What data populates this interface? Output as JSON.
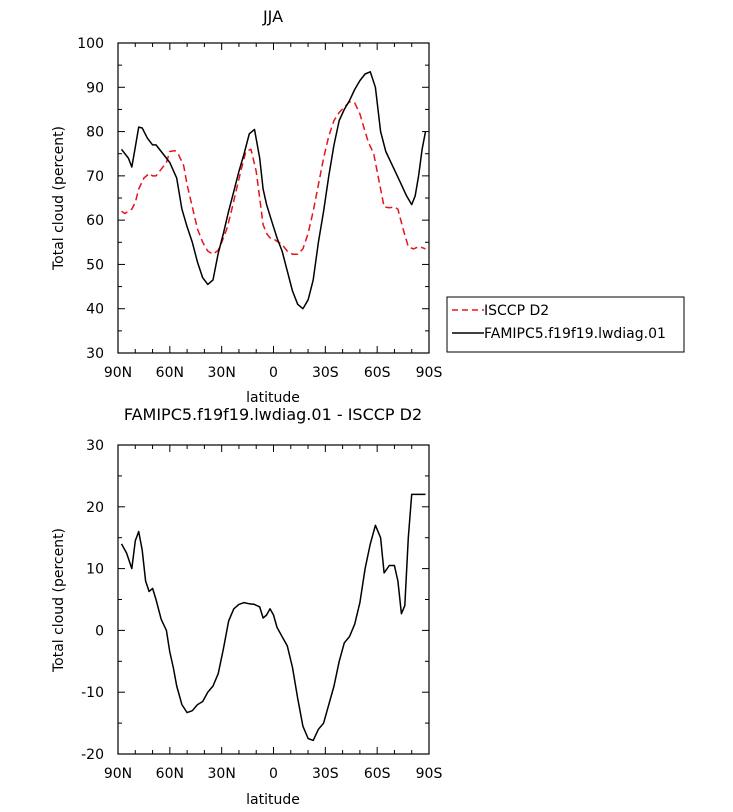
{
  "chart_data": [
    {
      "type": "line",
      "title": "JJA",
      "xlabel": "latitude",
      "ylabel": "Total cloud (percent)",
      "xlim": [
        90,
        -90
      ],
      "ylim": [
        30,
        100
      ],
      "x_ticks": [
        {
          "value": 90,
          "label": "90N"
        },
        {
          "value": 60,
          "label": "60N"
        },
        {
          "value": 30,
          "label": "30N"
        },
        {
          "value": 0,
          "label": "0"
        },
        {
          "value": -30,
          "label": "30S"
        },
        {
          "value": -60,
          "label": "60S"
        },
        {
          "value": -90,
          "label": "90S"
        }
      ],
      "y_ticks": [
        {
          "value": 30,
          "label": "30"
        },
        {
          "value": 40,
          "label": "40"
        },
        {
          "value": 50,
          "label": "50"
        },
        {
          "value": 60,
          "label": "60"
        },
        {
          "value": 70,
          "label": "70"
        },
        {
          "value": 80,
          "label": "80"
        },
        {
          "value": 90,
          "label": "90"
        },
        {
          "value": 100,
          "label": "100"
        }
      ],
      "legend_position": "right",
      "series": [
        {
          "name": "ISCCP D2",
          "color": "#e8131b",
          "dashed": true,
          "x": [
            88,
            86,
            82,
            80,
            78,
            75,
            72,
            70,
            68,
            65,
            62,
            60,
            57,
            55,
            52,
            50,
            47,
            44,
            41,
            38,
            35,
            32,
            30,
            27,
            25,
            22,
            19,
            16,
            13,
            10,
            8,
            6,
            4,
            2,
            0,
            -2,
            -5,
            -8,
            -11,
            -14,
            -17,
            -20,
            -23,
            -26,
            -29,
            -32,
            -35,
            -38,
            -41,
            -44,
            -47,
            -50,
            -53,
            -55,
            -58,
            -61,
            -64,
            -67,
            -70,
            -72,
            -75,
            -78,
            -81,
            -84,
            -86,
            -88
          ],
          "y": [
            62,
            61.5,
            62.5,
            64,
            67,
            69.5,
            70.5,
            70,
            70,
            71.5,
            73,
            75.5,
            75.7,
            74.8,
            72.3,
            68,
            63,
            58,
            55,
            53,
            52.3,
            53.2,
            55,
            58,
            61,
            66,
            71,
            75.5,
            76,
            71,
            65,
            59,
            57,
            56,
            55.8,
            55.2,
            54.5,
            53,
            52.3,
            52.3,
            53.5,
            57,
            62,
            68,
            74,
            79,
            82.5,
            84.3,
            85.5,
            86.7,
            86.5,
            84,
            80,
            77.5,
            75,
            69,
            63,
            62.8,
            63,
            62.5,
            58,
            54,
            53.5,
            54,
            53.8,
            53.5
          ]
        },
        {
          "name": "FAMIPC5.f19f19.lwdiag.01",
          "color": "#000000",
          "dashed": false,
          "x": [
            88,
            84,
            82,
            80,
            78,
            76,
            73,
            70,
            68,
            65,
            62,
            60,
            56,
            53,
            50,
            47,
            44,
            41,
            38,
            35,
            32,
            29,
            26,
            23,
            20,
            17,
            14,
            11,
            8,
            6,
            4,
            2,
            0,
            -2,
            -5,
            -8,
            -11,
            -14,
            -17,
            -20,
            -23,
            -26,
            -29,
            -32,
            -35,
            -38,
            -41,
            -44,
            -47,
            -50,
            -53,
            -56,
            -59,
            -62,
            -65,
            -68,
            -71,
            -74,
            -77,
            -80,
            -82,
            -84,
            -86,
            -88
          ],
          "y": [
            76,
            74,
            72,
            76.5,
            81,
            80.8,
            78.5,
            77,
            77,
            75.5,
            74,
            73,
            69.5,
            62.5,
            58.5,
            55,
            50.5,
            47,
            45.5,
            46.5,
            52.5,
            57,
            62,
            66.5,
            71,
            75,
            79.5,
            80.5,
            74,
            67,
            63.5,
            61,
            58.5,
            56,
            53,
            48.5,
            44,
            41,
            40,
            42,
            46.5,
            55,
            62,
            70,
            77,
            82.5,
            85,
            87,
            89.5,
            91.5,
            93,
            93.5,
            90,
            80,
            75.5,
            73,
            70.5,
            68,
            65.5,
            63.5,
            65.5,
            70,
            76,
            80
          ]
        }
      ]
    },
    {
      "type": "line",
      "title": "FAMIPC5.f19f19.lwdiag.01 - ISCCP D2",
      "xlabel": "latitude",
      "ylabel": "Total cloud (percent)",
      "xlim": [
        90,
        -90
      ],
      "ylim": [
        -20,
        30
      ],
      "x_ticks": [
        {
          "value": 90,
          "label": "90N"
        },
        {
          "value": 60,
          "label": "60N"
        },
        {
          "value": 30,
          "label": "30N"
        },
        {
          "value": 0,
          "label": "0"
        },
        {
          "value": -30,
          "label": "30S"
        },
        {
          "value": -60,
          "label": "60S"
        },
        {
          "value": -90,
          "label": "90S"
        }
      ],
      "y_ticks": [
        {
          "value": -20,
          "label": "-20"
        },
        {
          "value": -10,
          "label": "-10"
        },
        {
          "value": 0,
          "label": "0"
        },
        {
          "value": 10,
          "label": "10"
        },
        {
          "value": 20,
          "label": "20"
        },
        {
          "value": 30,
          "label": "30"
        }
      ],
      "series": [
        {
          "color": "#000000",
          "dashed": false,
          "x": [
            88,
            85,
            82,
            80,
            78,
            76,
            74,
            72,
            70,
            68,
            65,
            62,
            60,
            58,
            56,
            53,
            50,
            47,
            44,
            41,
            38,
            35,
            32,
            29,
            26,
            23,
            20,
            17,
            14,
            11,
            8,
            6,
            4,
            2,
            0,
            -2,
            -5,
            -8,
            -11,
            -14,
            -17,
            -20,
            -23,
            -26,
            -29,
            -32,
            -35,
            -38,
            -41,
            -44,
            -47,
            -50,
            -53,
            -56,
            -59,
            -62,
            -64,
            -67,
            -70,
            -72,
            -74,
            -76,
            -78,
            -80,
            -82,
            -84,
            -86,
            -88
          ],
          "y": [
            14,
            12.5,
            10,
            14.5,
            16,
            13,
            8,
            6.3,
            6.8,
            5,
            1.8,
            0,
            -3.5,
            -6,
            -9,
            -12,
            -13.3,
            -13,
            -12,
            -11.5,
            -10,
            -9,
            -7,
            -3,
            1.5,
            3.5,
            4.2,
            4.5,
            4.3,
            4.2,
            3.8,
            2,
            2.5,
            3.5,
            2.5,
            0.5,
            -1,
            -2.5,
            -6,
            -11,
            -15.5,
            -17.5,
            -17.8,
            -16,
            -15,
            -12,
            -9,
            -5,
            -2,
            -1,
            1,
            4.5,
            10,
            14,
            17,
            15,
            9.3,
            10.5,
            10.5,
            8,
            2.7,
            4,
            15,
            22,
            22,
            22,
            22,
            22
          ]
        }
      ]
    }
  ]
}
